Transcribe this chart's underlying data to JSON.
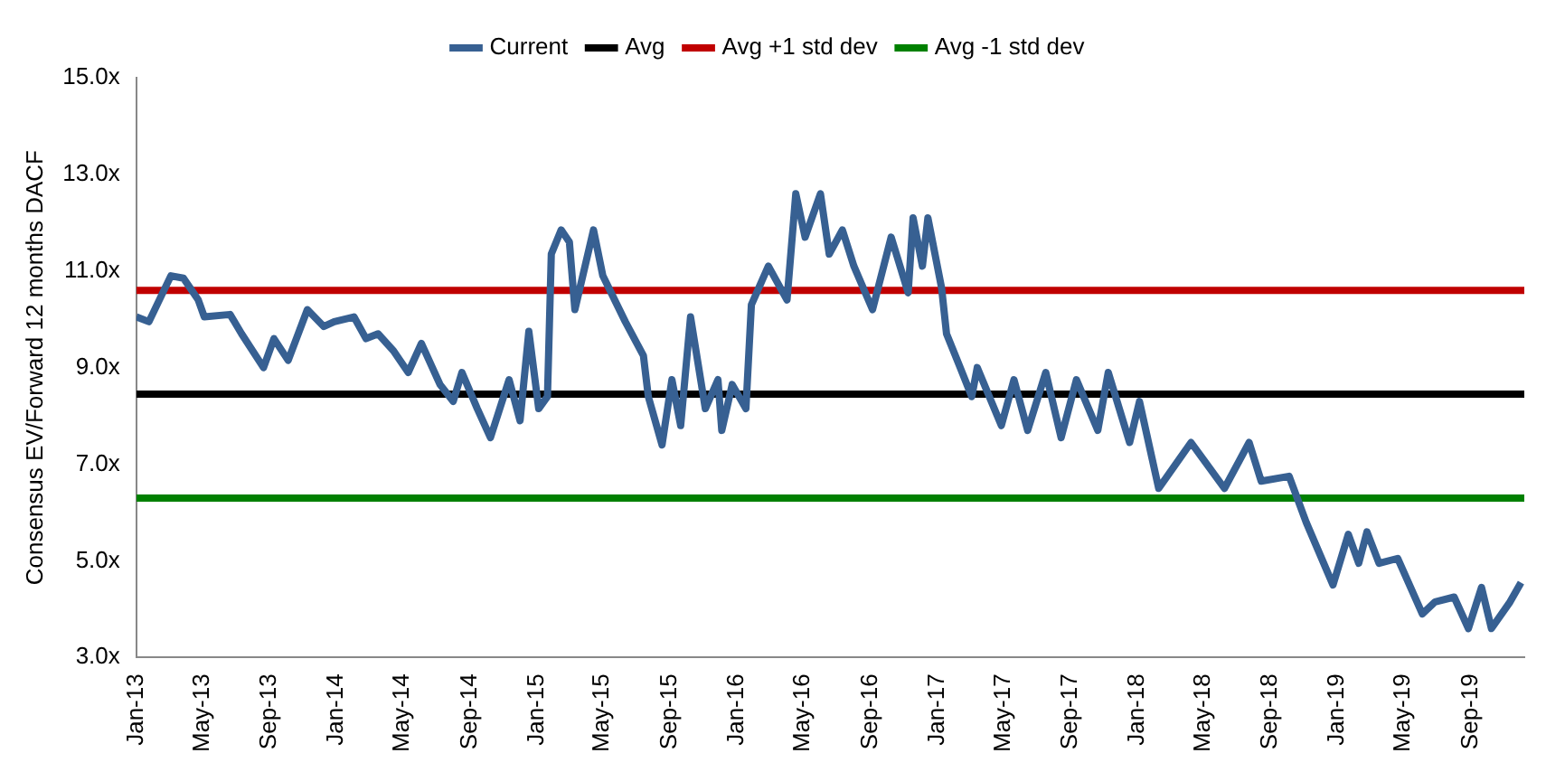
{
  "chart_data": {
    "type": "line",
    "ylabel": "Consensus EV/Forward 12 months DACF",
    "legend": "top",
    "grid": false,
    "marker": "none",
    "line_style": "solid",
    "x": [
      "2013-01-01",
      "2013-01-24",
      "2013-03-05",
      "2013-03-28",
      "2013-04-24",
      "2013-05-05",
      "2013-06-21",
      "2013-07-12",
      "2013-08-21",
      "2013-09-09",
      "2013-10-05",
      "2013-11-09",
      "2013-12-09",
      "2013-12-28",
      "2014-02-02",
      "2014-02-24",
      "2014-03-18",
      "2014-04-15",
      "2014-05-12",
      "2014-06-05",
      "2014-07-09",
      "2014-08-02",
      "2014-08-18",
      "2014-09-15",
      "2014-10-09",
      "2014-11-12",
      "2014-12-02",
      "2014-12-18",
      "2015-01-05",
      "2015-01-21",
      "2015-01-28",
      "2015-02-15",
      "2015-03-02",
      "2015-03-12",
      "2015-04-15",
      "2015-05-02",
      "2015-06-12",
      "2015-07-15",
      "2015-07-24",
      "2015-08-18",
      "2015-09-05",
      "2015-09-21",
      "2015-10-09",
      "2015-11-05",
      "2015-11-28",
      "2015-12-05",
      "2015-12-24",
      "2016-01-18",
      "2016-01-28",
      "2016-02-28",
      "2016-04-02",
      "2016-04-18",
      "2016-05-05",
      "2016-06-02",
      "2016-06-18",
      "2016-07-12",
      "2016-08-02",
      "2016-09-05",
      "2016-10-09",
      "2016-11-09",
      "2016-11-18",
      "2016-12-05",
      "2016-12-15",
      "2017-01-09",
      "2017-01-18",
      "2017-02-12",
      "2017-03-05",
      "2017-03-15",
      "2017-04-28",
      "2017-05-21",
      "2017-06-15",
      "2017-07-18",
      "2017-08-15",
      "2017-09-12",
      "2017-10-21",
      "2017-11-09",
      "2017-12-18",
      "2018-01-05",
      "2018-02-09",
      "2018-04-09",
      "2018-06-09",
      "2018-07-24",
      "2018-08-15",
      "2018-10-05",
      "2018-11-05",
      "2018-12-24",
      "2019-01-21",
      "2019-02-09",
      "2019-02-24",
      "2019-03-18",
      "2019-04-21",
      "2019-06-05",
      "2019-06-28",
      "2019-08-02",
      "2019-08-28",
      "2019-09-21",
      "2019-10-09",
      "2019-11-12",
      "2019-12-02"
    ],
    "series": [
      {
        "name": "Current",
        "color": "#376092",
        "values": [
          10.05,
          9.95,
          10.9,
          10.85,
          10.4,
          10.05,
          10.1,
          9.7,
          9.0,
          9.6,
          9.15,
          10.2,
          9.85,
          9.95,
          10.05,
          9.6,
          9.7,
          9.35,
          8.9,
          9.5,
          8.65,
          8.3,
          8.9,
          8.15,
          7.55,
          8.75,
          7.9,
          9.75,
          8.15,
          8.4,
          11.35,
          11.85,
          11.6,
          10.2,
          11.85,
          10.9,
          9.95,
          9.25,
          8.4,
          7.4,
          8.75,
          7.8,
          10.05,
          8.15,
          8.75,
          7.7,
          8.65,
          8.15,
          10.3,
          11.1,
          10.4,
          12.6,
          11.7,
          12.6,
          11.35,
          11.85,
          11.1,
          10.2,
          11.7,
          10.55,
          12.1,
          11.1,
          12.1,
          10.65,
          9.7,
          9.0,
          8.4,
          9.0,
          7.8,
          8.75,
          7.7,
          8.9,
          7.55,
          8.75,
          7.7,
          8.9,
          7.45,
          8.3,
          6.5,
          7.45,
          6.5,
          7.45,
          6.65,
          6.75,
          5.8,
          4.5,
          5.55,
          4.95,
          5.6,
          4.95,
          5.05,
          3.9,
          4.15,
          4.25,
          3.6,
          4.45,
          3.6,
          4.15,
          4.55
        ]
      }
    ],
    "ref_lines": [
      {
        "axis": "y",
        "value": 8.45,
        "label": "Avg",
        "color": "#000000"
      },
      {
        "axis": "y",
        "value": 10.6,
        "label": "Avg +1 std dev",
        "color": "#c00000"
      },
      {
        "axis": "y",
        "value": 6.3,
        "label": "Avg -1 std dev",
        "color": "#008000"
      }
    ],
    "xlim": [
      "2013-01-01",
      "2019-12-08"
    ],
    "xticks": [
      {
        "value": "2013-01",
        "label": "Jan-13"
      },
      {
        "value": "2013-05",
        "label": "May-13"
      },
      {
        "value": "2013-09",
        "label": "Sep-13"
      },
      {
        "value": "2014-01",
        "label": "Jan-14"
      },
      {
        "value": "2014-05",
        "label": "May-14"
      },
      {
        "value": "2014-09",
        "label": "Sep-14"
      },
      {
        "value": "2015-01",
        "label": "Jan-15"
      },
      {
        "value": "2015-05",
        "label": "May-15"
      },
      {
        "value": "2015-09",
        "label": "Sep-15"
      },
      {
        "value": "2016-01",
        "label": "Jan-16"
      },
      {
        "value": "2016-05",
        "label": "May-16"
      },
      {
        "value": "2016-09",
        "label": "Sep-16"
      },
      {
        "value": "2017-01",
        "label": "Jan-17"
      },
      {
        "value": "2017-05",
        "label": "May-17"
      },
      {
        "value": "2017-09",
        "label": "Sep-17"
      },
      {
        "value": "2018-01",
        "label": "Jan-18"
      },
      {
        "value": "2018-05",
        "label": "May-18"
      },
      {
        "value": "2018-09",
        "label": "Sep-18"
      },
      {
        "value": "2019-01",
        "label": "Jan-19"
      },
      {
        "value": "2019-05",
        "label": "May-19"
      },
      {
        "value": "2019-09",
        "label": "Sep-19"
      }
    ],
    "ylim": [
      3,
      15
    ],
    "yticks": [
      {
        "value": 3,
        "label": "3.0x"
      },
      {
        "value": 5,
        "label": "5.0x"
      },
      {
        "value": 7,
        "label": "7.0x"
      },
      {
        "value": 9,
        "label": "9.0x"
      },
      {
        "value": 11,
        "label": "11.0x"
      },
      {
        "value": 13,
        "label": "13.0x"
      },
      {
        "value": 15,
        "label": "15.0x"
      }
    ]
  }
}
